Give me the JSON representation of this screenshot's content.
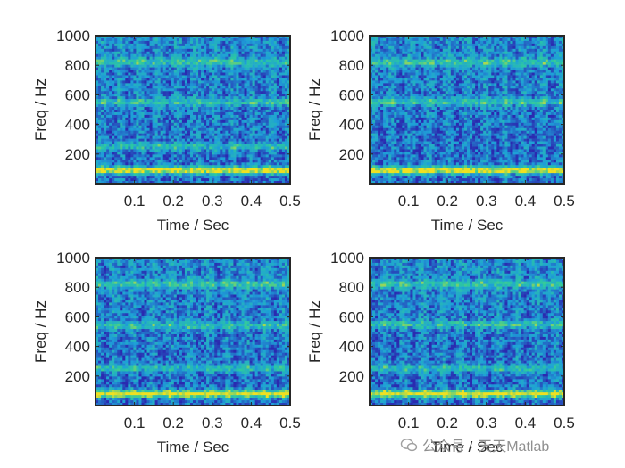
{
  "chart_data": [
    {
      "type": "heatmap",
      "title": "",
      "xlabel": "Time / Sec",
      "ylabel": "Freq / Hz",
      "xlim": [
        0,
        0.5
      ],
      "ylim": [
        0,
        1000
      ],
      "xticks": [
        "0.1",
        "0.2",
        "0.3",
        "0.4",
        "0.5"
      ],
      "yticks": [
        "200",
        "400",
        "600",
        "800",
        "1000"
      ],
      "colormap": "parula",
      "strong_bands_hz": [
        90,
        250,
        550,
        820
      ],
      "description_level": "strongest band near 90 Hz, broad energy up to 1000 Hz"
    },
    {
      "type": "heatmap",
      "title": "",
      "xlabel": "Time / Sec",
      "ylabel": "Freq / Hz",
      "xlim": [
        0,
        0.5
      ],
      "ylim": [
        0,
        1000
      ],
      "xticks": [
        "0.1",
        "0.2",
        "0.3",
        "0.4",
        "0.5"
      ],
      "yticks": [
        "200",
        "400",
        "600",
        "800",
        "1000"
      ],
      "colormap": "parula",
      "strong_bands_hz": [
        90,
        550,
        820
      ]
    },
    {
      "type": "heatmap",
      "title": "",
      "xlabel": "Time / Sec",
      "ylabel": "Freq / Hz",
      "xlim": [
        0,
        0.5
      ],
      "ylim": [
        0,
        1000
      ],
      "xticks": [
        "0.1",
        "0.2",
        "0.3",
        "0.4",
        "0.5"
      ],
      "yticks": [
        "200",
        "400",
        "600",
        "800",
        "1000"
      ],
      "colormap": "parula",
      "strong_bands_hz": [
        80,
        250,
        540,
        820
      ]
    },
    {
      "type": "heatmap",
      "title": "",
      "xlabel": "Time / Sec",
      "ylabel": "Freq / Hz",
      "xlim": [
        0,
        0.5
      ],
      "ylim": [
        0,
        1000
      ],
      "xticks": [
        "0.1",
        "0.2",
        "0.3",
        "0.4",
        "0.5"
      ],
      "yticks": [
        "200",
        "400",
        "600",
        "800",
        "1000"
      ],
      "colormap": "parula",
      "strong_bands_hz": [
        80,
        250,
        550,
        820
      ]
    }
  ],
  "colors": {
    "low": "#2a2ab0",
    "mid": "#1e9fd8",
    "high_mid": "#2cc8a0",
    "peak": "#f0e020",
    "axes": "#262626"
  },
  "watermark": {
    "text": "公众号 · 天天Matlab",
    "icon": "wechat-icon"
  }
}
